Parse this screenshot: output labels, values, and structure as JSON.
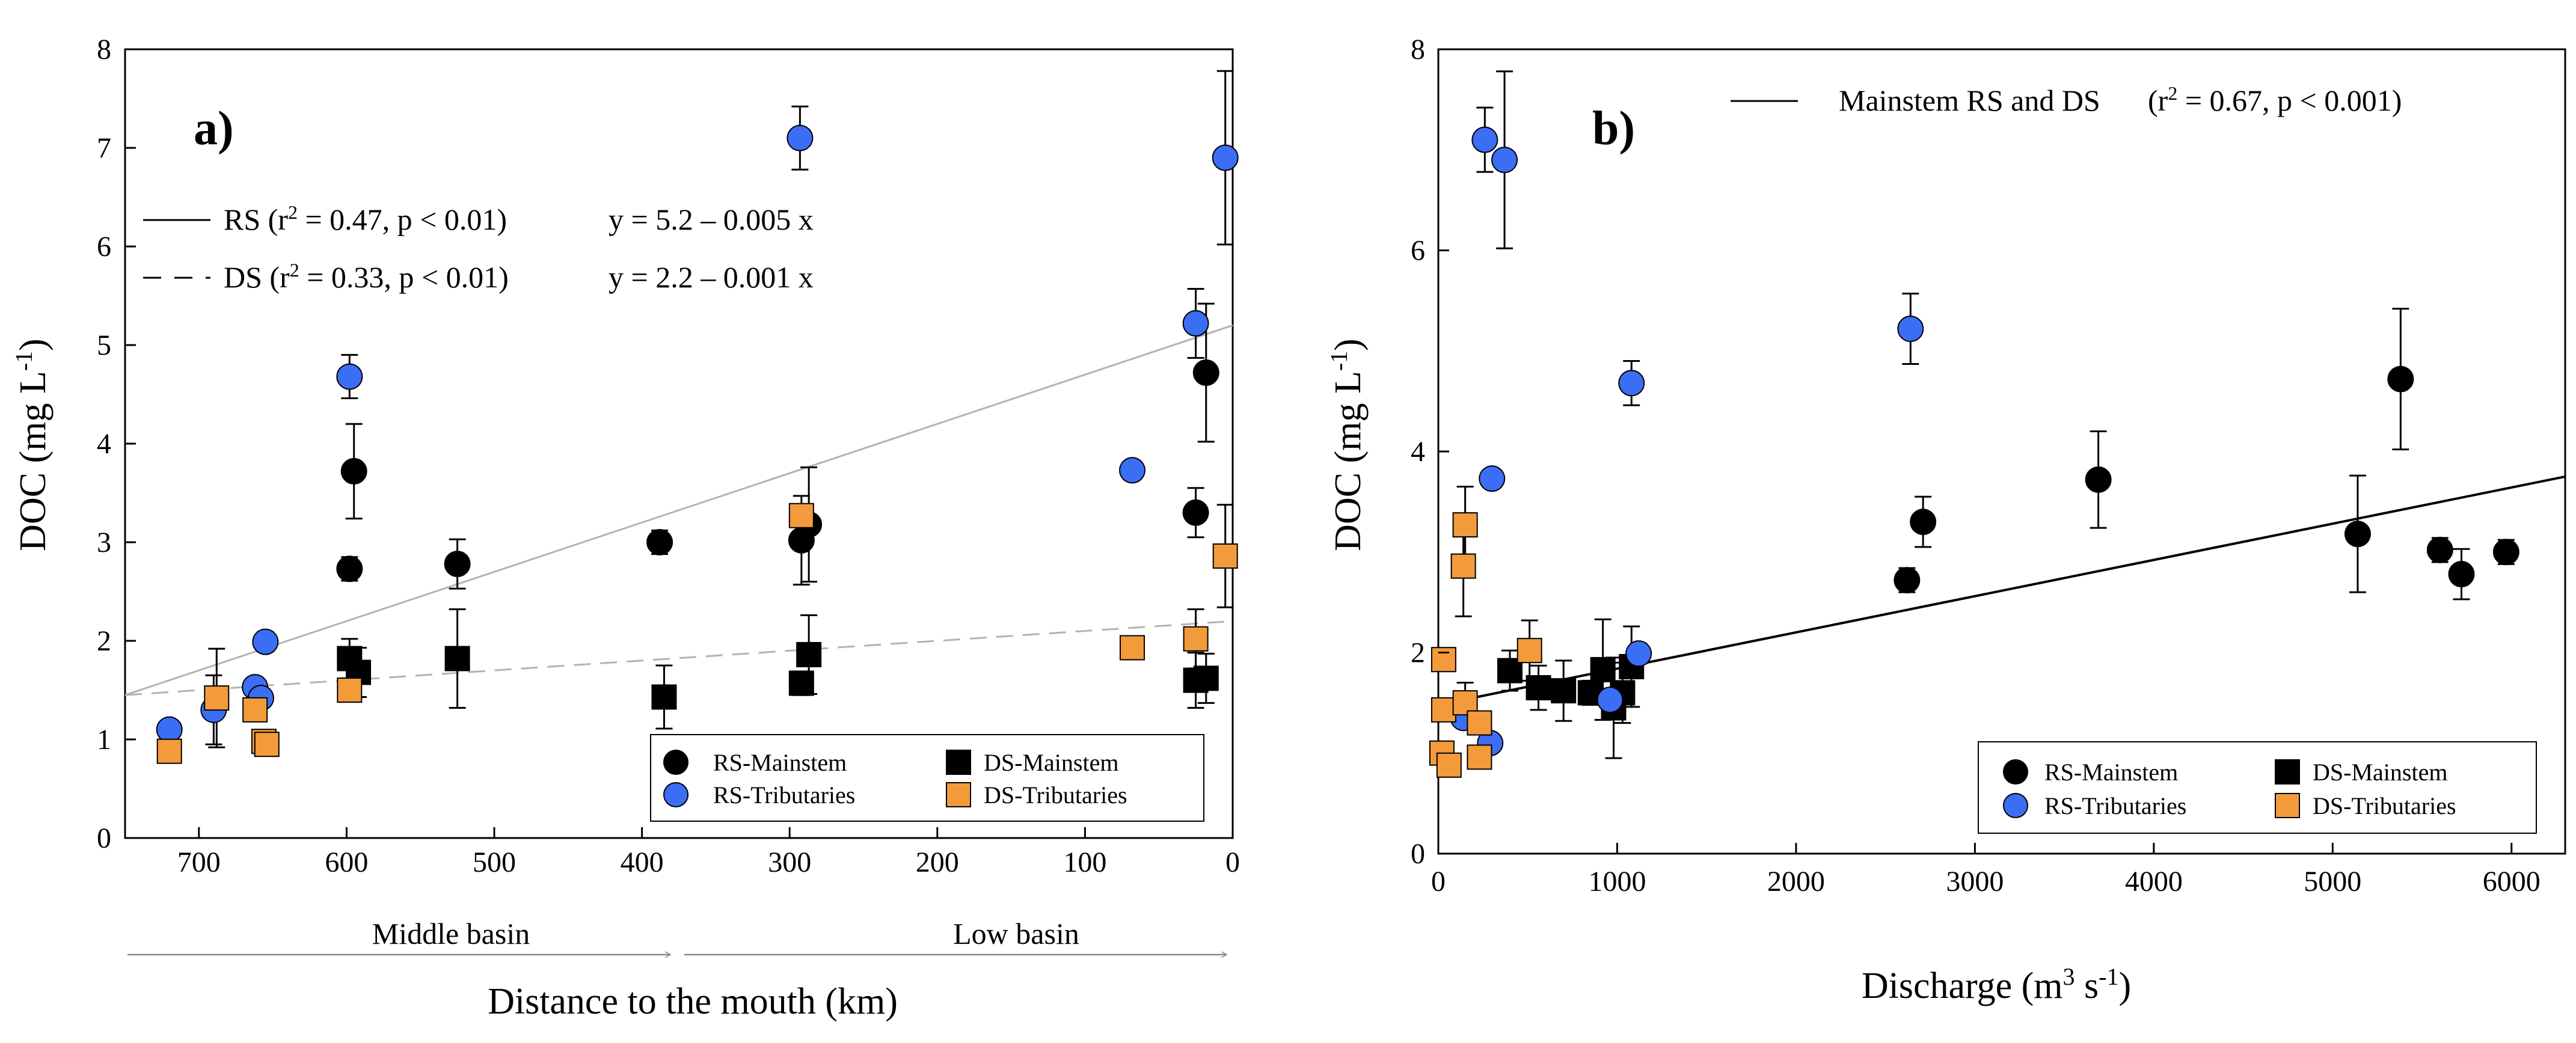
{
  "panel_a": {
    "label": "a)",
    "ylabel": "DOC (mg L",
    "ylabel_sup": "-1",
    "ylabel_close": ")",
    "xlabel": "Distance to the mouth  (km)",
    "region_left": "Middle basin",
    "region_right": "Low basin",
    "fit_rs_text": "RS (r",
    "fit_rs_stats": " = 0.47, p < 0.01)",
    "fit_rs_eq": "y = 5.2 – 0.005 x",
    "fit_ds_text": "DS (r",
    "fit_ds_stats": " = 0.33, p < 0.01)",
    "fit_ds_eq": "y = 2.2 – 0.001 x",
    "r2_sup": "2"
  },
  "panel_b": {
    "label": "b)",
    "ylabel": "DOC (mg L",
    "ylabel_sup": "-1",
    "ylabel_close": ")",
    "xlabel": "Discharge  (m",
    "xlabel_sup1": "3",
    "xlabel_mid": " s",
    "xlabel_sup2": "-1",
    "xlabel_close": ")",
    "fit_text": "Mainstem RS and DS",
    "fit_stats_open": "(r",
    "fit_stats_rest": " = 0.67, p < 0.001)",
    "r2_sup": "2"
  },
  "legend": {
    "rs_mainstem": "RS-Mainstem",
    "ds_mainstem": "DS-Mainstem",
    "rs_tributaries": "RS-Tributaries",
    "ds_tributaries": "DS-Tributaries"
  },
  "colors": {
    "rs_mainstem": "#000000",
    "ds_mainstem": "#000000",
    "rs_tributaries": "#3b6ef5",
    "ds_tributaries": "#f39b3a",
    "rs_fit_line": "#b3b3b3",
    "ds_fit_line": "#b3b3b3",
    "b_fit_line": "#000000"
  },
  "chart_data": [
    {
      "type": "scatter",
      "xlabel": "Distance to the mouth  (km)",
      "ylabel": "DOC (mg L-1)",
      "xlim": [
        750,
        0
      ],
      "ylim": [
        0,
        8
      ],
      "x_ticks": [
        700,
        600,
        500,
        400,
        300,
        200,
        100,
        0
      ],
      "y_ticks": [
        0,
        1,
        2,
        3,
        4,
        5,
        6,
        7,
        8
      ],
      "series": [
        {
          "name": "RS-Mainstem",
          "marker": "circle",
          "points": [
            {
              "x": 598,
              "y": 2.73,
              "err": 0.12
            },
            {
              "x": 595,
              "y": 3.72,
              "err": 0.48
            },
            {
              "x": 525,
              "y": 2.78,
              "err": 0.25
            },
            {
              "x": 388,
              "y": 3.0,
              "err": 0.12
            },
            {
              "x": 292,
              "y": 3.02,
              "err": 0.45
            },
            {
              "x": 287,
              "y": 3.18,
              "err": 0.58
            },
            {
              "x": 25,
              "y": 3.3,
              "err": 0.25
            },
            {
              "x": 18,
              "y": 4.72,
              "err": 0.7
            }
          ]
        },
        {
          "name": "DS-Mainstem",
          "marker": "square",
          "points": [
            {
              "x": 598,
              "y": 1.82,
              "err": 0.2
            },
            {
              "x": 592,
              "y": 1.68,
              "err": 0.25
            },
            {
              "x": 525,
              "y": 1.82,
              "err": 0.5
            },
            {
              "x": 385,
              "y": 1.43,
              "err": 0.32
            },
            {
              "x": 292,
              "y": 1.57,
              "err": 0.12
            },
            {
              "x": 287,
              "y": 1.86,
              "err": 0.4
            },
            {
              "x": 25,
              "y": 1.6,
              "err": 0.28
            },
            {
              "x": 18,
              "y": 1.62,
              "err": 0.25
            }
          ]
        },
        {
          "name": "RS-Tributaries",
          "marker": "circle",
          "points": [
            {
              "x": 720,
              "y": 1.1,
              "err": 0
            },
            {
              "x": 690,
              "y": 1.3,
              "err": 0.35
            },
            {
              "x": 662,
              "y": 1.53,
              "err": 0
            },
            {
              "x": 658,
              "y": 1.42,
              "err": 0
            },
            {
              "x": 655,
              "y": 1.99,
              "err": 0.1
            },
            {
              "x": 598,
              "y": 4.68,
              "err": 0.22
            },
            {
              "x": 293,
              "y": 7.1,
              "err": 0.32
            },
            {
              "x": 68,
              "y": 3.73,
              "err": 0
            },
            {
              "x": 25,
              "y": 5.22,
              "err": 0.35
            },
            {
              "x": 5,
              "y": 6.9,
              "err": 0.88
            }
          ]
        },
        {
          "name": "DS-Tributaries",
          "marker": "square",
          "points": [
            {
              "x": 720,
              "y": 0.88,
              "err": 0
            },
            {
              "x": 688,
              "y": 1.42,
              "err": 0.5
            },
            {
              "x": 662,
              "y": 1.3,
              "err": 0
            },
            {
              "x": 656,
              "y": 0.98,
              "err": 0
            },
            {
              "x": 654,
              "y": 0.95,
              "err": 0
            },
            {
              "x": 598,
              "y": 1.5,
              "err": 0
            },
            {
              "x": 292,
              "y": 3.27,
              "err": 0
            },
            {
              "x": 68,
              "y": 1.93,
              "err": 0
            },
            {
              "x": 25,
              "y": 2.02,
              "err": 0.3
            },
            {
              "x": 5,
              "y": 2.86,
              "err": 0.52
            }
          ]
        }
      ],
      "fits": [
        {
          "name": "RS",
          "style": "solid",
          "intercept": 5.2,
          "slope_per_km": -0.005,
          "r2": 0.47
        },
        {
          "name": "DS",
          "style": "dashed",
          "intercept": 2.2,
          "slope_per_km": -0.001,
          "r2": 0.33
        }
      ],
      "legend_position": "bottom-right"
    },
    {
      "type": "scatter",
      "xlabel": "Discharge  (m3 s-1)",
      "ylabel": "DOC (mg L-1)",
      "xlim": [
        0,
        6300
      ],
      "ylim": [
        0,
        8
      ],
      "x_ticks": [
        0,
        1000,
        2000,
        3000,
        4000,
        5000,
        6000
      ],
      "y_ticks": [
        0,
        2,
        4,
        6,
        8
      ],
      "series": [
        {
          "name": "RS-Mainstem",
          "marker": "circle",
          "points": [
            {
              "x": 2620,
              "y": 2.72,
              "err": 0.12
            },
            {
              "x": 2710,
              "y": 3.3,
              "err": 0.25
            },
            {
              "x": 3690,
              "y": 3.72,
              "err": 0.48
            },
            {
              "x": 5140,
              "y": 3.18,
              "err": 0.58
            },
            {
              "x": 5380,
              "y": 4.72,
              "err": 0.7
            },
            {
              "x": 5600,
              "y": 3.02,
              "err": 0.12
            },
            {
              "x": 5720,
              "y": 2.78,
              "err": 0.25
            },
            {
              "x": 5970,
              "y": 3.0,
              "err": 0.12
            }
          ]
        },
        {
          "name": "DS-Mainstem",
          "marker": "square",
          "points": [
            {
              "x": 400,
              "y": 1.82,
              "err": 0.2
            },
            {
              "x": 560,
              "y": 1.65,
              "err": 0.22
            },
            {
              "x": 700,
              "y": 1.62,
              "err": 0.3
            },
            {
              "x": 850,
              "y": 1.6,
              "err": 0.12
            },
            {
              "x": 920,
              "y": 1.83,
              "err": 0.5
            },
            {
              "x": 980,
              "y": 1.45,
              "err": 0.5
            },
            {
              "x": 1030,
              "y": 1.6,
              "err": 0.3
            },
            {
              "x": 1080,
              "y": 1.86,
              "err": 0.4
            }
          ]
        },
        {
          "name": "RS-Tributaries",
          "marker": "circle",
          "points": [
            {
              "x": 260,
              "y": 7.1,
              "err": 0.32
            },
            {
              "x": 370,
              "y": 6.9,
              "err": 0.88
            },
            {
              "x": 2640,
              "y": 5.22,
              "err": 0.35
            },
            {
              "x": 1080,
              "y": 4.68,
              "err": 0.22
            },
            {
              "x": 300,
              "y": 3.73,
              "err": 0
            },
            {
              "x": 1120,
              "y": 1.99,
              "err": 0.1
            },
            {
              "x": 140,
              "y": 1.35,
              "err": 0
            },
            {
              "x": 290,
              "y": 1.1,
              "err": 0
            },
            {
              "x": 960,
              "y": 1.53,
              "err": 0
            }
          ]
        },
        {
          "name": "DS-Tributaries",
          "marker": "square",
          "points": [
            {
              "x": 150,
              "y": 3.27,
              "err": 0.38
            },
            {
              "x": 140,
              "y": 2.86,
              "err": 0.5
            },
            {
              "x": 510,
              "y": 2.02,
              "err": 0.3
            },
            {
              "x": 30,
              "y": 1.93,
              "err": 0
            },
            {
              "x": 30,
              "y": 1.43,
              "err": 0
            },
            {
              "x": 150,
              "y": 1.5,
              "err": 0.2
            },
            {
              "x": 230,
              "y": 1.3,
              "err": 0
            },
            {
              "x": 20,
              "y": 1.0,
              "err": 0
            },
            {
              "x": 230,
              "y": 0.96,
              "err": 0
            },
            {
              "x": 60,
              "y": 0.88,
              "err": 0
            }
          ]
        }
      ],
      "fits": [
        {
          "name": "Mainstem RS and DS",
          "style": "solid",
          "x_range": [
            0,
            6300
          ],
          "y_range": [
            1.48,
            3.75
          ],
          "r2": 0.67
        }
      ],
      "legend_position": "bottom-right"
    }
  ]
}
